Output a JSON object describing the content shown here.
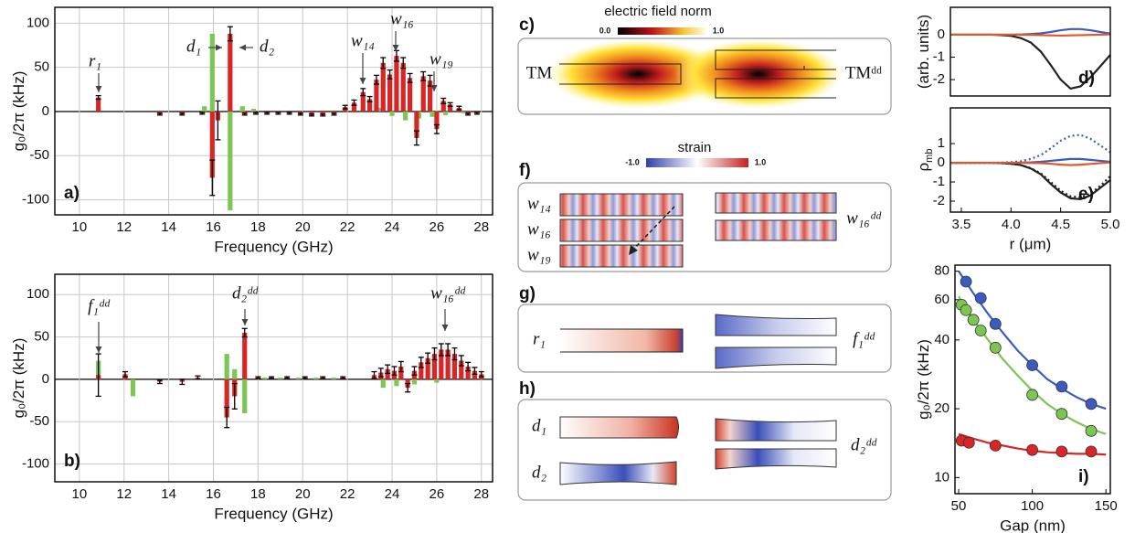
{
  "chart_data": [
    {
      "type": "bar",
      "label": "a)",
      "xlabel": "Frequency (GHz)",
      "ylabel": "g₀/2π (kHz)",
      "xlim": [
        8.9,
        28.5
      ],
      "xticks": [
        10,
        12,
        14,
        16,
        18,
        20,
        22,
        24,
        26,
        28
      ],
      "ylim": [
        -117,
        118
      ],
      "yticks": [
        100,
        50,
        0,
        -50,
        -100
      ],
      "grid": true,
      "annotations": [
        "r₁",
        "d₁",
        "d₂",
        "w₁₄",
        "w₁₆",
        "w₁₉"
      ],
      "series": [
        {
          "color": "#7cc653",
          "x": [
            15.6,
            15.95,
            16.75,
            17.3,
            17.8,
            23.5,
            24.0,
            24.6,
            25.2,
            25.8,
            26.4,
            27.2
          ],
          "values": [
            6,
            88,
            -112,
            6,
            3,
            4,
            -5,
            -10,
            -8,
            -6,
            -4,
            -2
          ]
        },
        {
          "color": "#d82626",
          "x": [
            10.85,
            13.6,
            14.6,
            15.5,
            15.95,
            16.2,
            16.75,
            17.4,
            17.9,
            18.4,
            18.9,
            19.4,
            19.9,
            20.4,
            20.9,
            21.4,
            21.9,
            22.3,
            22.7,
            23.0,
            23.3,
            23.6,
            23.9,
            24.2,
            24.5,
            24.8,
            25.1,
            25.4,
            25.7,
            26.0,
            26.3,
            26.6,
            27.0,
            27.4,
            27.8
          ],
          "values": [
            16,
            -3,
            -3,
            -2,
            -75,
            -10,
            88,
            -3,
            -2,
            -2,
            -2,
            -2,
            -3,
            -4,
            -4,
            -3,
            5,
            10,
            22,
            14,
            36,
            55,
            42,
            63,
            55,
            38,
            -30,
            40,
            35,
            -20,
            12,
            8,
            4,
            -3,
            -2
          ],
          "errors": [
            2,
            1,
            1,
            1,
            20,
            22,
            8,
            1,
            1,
            1,
            1,
            1,
            1,
            1,
            1,
            1,
            2,
            3,
            4,
            3,
            5,
            6,
            5,
            6,
            6,
            5,
            8,
            5,
            6,
            5,
            3,
            2,
            2,
            1,
            1
          ]
        }
      ]
    },
    {
      "type": "bar",
      "label": "b)",
      "xlabel": "Frequency (GHz)",
      "ylabel": "g₀/2π (kHz)",
      "xlim": [
        8.9,
        28.5
      ],
      "xticks": [
        10,
        12,
        14,
        16,
        18,
        20,
        22,
        24,
        26,
        28
      ],
      "ylim": [
        -121,
        124
      ],
      "yticks": [
        100,
        50,
        0,
        -50,
        -100
      ],
      "grid": true,
      "annotations": [
        "f₁ᵈᵈ",
        "d₂ᵈᵈ",
        "w₁₆ᵈᵈ"
      ],
      "series": [
        {
          "color": "#7cc653",
          "x": [
            10.85,
            12.4,
            16.6,
            16.95,
            17.4,
            18.3,
            19.0,
            19.8,
            20.6,
            21.4,
            23.6,
            24.2,
            25.0,
            26.0
          ],
          "values": [
            22,
            -20,
            30,
            12,
            -40,
            2,
            2,
            2,
            2,
            2,
            -10,
            -8,
            -6,
            -4
          ]
        },
        {
          "color": "#d82626",
          "x": [
            10.85,
            12.05,
            13.6,
            14.6,
            15.3,
            16.6,
            16.95,
            17.4,
            18.0,
            18.6,
            19.3,
            20.1,
            20.9,
            21.8,
            23.2,
            23.5,
            23.8,
            24.1,
            24.4,
            24.7,
            25.0,
            25.3,
            25.6,
            25.9,
            26.2,
            26.5,
            26.8,
            27.1,
            27.4,
            27.7,
            28.0
          ],
          "values": [
            5,
            6,
            -3,
            -3,
            2,
            -45,
            -20,
            55,
            2,
            2,
            2,
            2,
            2,
            2,
            5,
            8,
            12,
            10,
            15,
            -10,
            10,
            20,
            25,
            30,
            35,
            35,
            30,
            22,
            15,
            10,
            6
          ],
          "errors": [
            25,
            3,
            2,
            3,
            2,
            12,
            15,
            5,
            1,
            1,
            1,
            1,
            1,
            1,
            4,
            5,
            5,
            5,
            6,
            5,
            5,
            6,
            6,
            7,
            7,
            7,
            7,
            6,
            5,
            4,
            3
          ]
        }
      ]
    },
    {
      "type": "line",
      "label": "d)",
      "ylabel": "(arb. units)",
      "xlim": [
        3.39,
        5.0
      ],
      "ylim": [
        -2.73,
        1.22
      ],
      "yticks": [
        0,
        -1,
        -2
      ],
      "x": [
        3.4,
        3.5,
        3.6,
        3.7,
        3.8,
        3.9,
        4.0,
        4.1,
        4.2,
        4.3,
        4.4,
        4.5,
        4.6,
        4.7,
        4.8,
        4.9,
        5.0
      ],
      "series": [
        {
          "color": "#222222",
          "values": [
            0,
            0,
            0,
            0,
            0,
            -0.02,
            -0.05,
            -0.15,
            -0.35,
            -0.75,
            -1.35,
            -2.0,
            -2.4,
            -2.3,
            -1.9,
            -1.4,
            -0.9
          ]
        },
        {
          "color": "#3b5bbf",
          "values": [
            0,
            0,
            0,
            0,
            0,
            0,
            0,
            0.01,
            0.03,
            0.06,
            0.12,
            0.2,
            0.25,
            0.25,
            0.2,
            0.12,
            0.05
          ]
        },
        {
          "color": "#e0572a",
          "values": [
            0,
            0,
            0,
            0,
            0,
            0,
            0,
            0,
            -0.01,
            -0.02,
            -0.03,
            -0.04,
            -0.03,
            -0.02,
            -0.01,
            0,
            0.02
          ]
        }
      ]
    },
    {
      "type": "line",
      "label": "e)",
      "xlabel": "r (μm)",
      "ylabel": "ρ",
      "ylabel_sub": "mb",
      "xlim": [
        3.39,
        5.0
      ],
      "xticks": [
        3.5,
        {
          "value": 4,
          "label": "4.0"
        },
        4.5,
        {
          "value": 5,
          "label": "5.0"
        }
      ],
      "ylim": [
        -2.57,
        2.86
      ],
      "yticks": [
        1,
        0,
        -1,
        -2
      ],
      "x": [
        3.4,
        3.5,
        3.6,
        3.7,
        3.8,
        3.9,
        4.0,
        4.1,
        4.2,
        4.3,
        4.4,
        4.5,
        4.6,
        4.7,
        4.8,
        4.9,
        5.0
      ],
      "series": [
        {
          "color": "#3b5bbf",
          "dash": true,
          "values": [
            0,
            0,
            0,
            0,
            0,
            0.01,
            0.03,
            0.08,
            0.2,
            0.4,
            0.75,
            1.15,
            1.4,
            1.45,
            1.25,
            0.9,
            0.55
          ]
        },
        {
          "color": "#222222",
          "dash": true,
          "values": [
            0,
            0,
            0,
            0,
            0,
            -0.02,
            -0.05,
            -0.12,
            -0.28,
            -0.55,
            -1.0,
            -1.45,
            -1.75,
            -1.8,
            -1.6,
            -1.2,
            -0.7
          ]
        },
        {
          "color": "#222222",
          "values": [
            0,
            0,
            0,
            0,
            0,
            -0.02,
            -0.05,
            -0.12,
            -0.3,
            -0.6,
            -1.1,
            -1.55,
            -1.85,
            -1.9,
            -1.7,
            -1.3,
            -0.9
          ]
        },
        {
          "color": "#3b5bbf",
          "values": [
            0,
            0,
            0,
            0,
            0,
            0,
            0,
            0.01,
            0.02,
            0.05,
            0.1,
            0.15,
            0.2,
            0.2,
            0.15,
            0.1,
            0.05
          ]
        },
        {
          "color": "#e0572a",
          "values": [
            0,
            0,
            0,
            0,
            0,
            0,
            0,
            0,
            -0.01,
            -0.02,
            -0.05,
            -0.1,
            -0.12,
            -0.1,
            -0.06,
            -0.02,
            0.02
          ]
        }
      ]
    },
    {
      "type": "scatter",
      "label": "i)",
      "xlabel": "Gap (nm)",
      "ylabel": "g₀/2π (kHz)",
      "log_y": true,
      "xlim": [
        47.5,
        153
      ],
      "xticks": [
        50,
        100,
        150
      ],
      "ylim": [
        8.5,
        85
      ],
      "yticks": [
        10,
        20,
        40,
        60,
        80
      ],
      "series": [
        {
          "color": "#3b5bbf",
          "x": [
            50,
            60,
            70,
            80,
            90,
            100,
            110,
            120,
            130,
            140,
            150
          ],
          "values": [
            80,
            64,
            52,
            43,
            36,
            31,
            27,
            24.5,
            22.5,
            21,
            20
          ]
        },
        {
          "color": "#7cc653",
          "x": [
            50,
            60,
            70,
            80,
            90,
            100,
            110,
            120,
            130,
            140,
            150
          ],
          "values": [
            62,
            49,
            40,
            33,
            28,
            24,
            21,
            19,
            17.5,
            16.3,
            15.5
          ]
        },
        {
          "color": "#d82626",
          "x": [
            50,
            60,
            70,
            80,
            90,
            100,
            110,
            120,
            130,
            140,
            150
          ],
          "values": [
            15.5,
            14.8,
            14.2,
            13.8,
            13.4,
            13.1,
            12.9,
            12.8,
            12.7,
            12.7,
            12.6
          ]
        },
        {
          "color": "#3b5bbf",
          "markers": true,
          "x": [
            55,
            65,
            75,
            100,
            120,
            140
          ],
          "values": [
            72,
            61,
            47,
            31,
            25,
            21
          ]
        },
        {
          "color": "#7cc653",
          "markers": true,
          "x": [
            52,
            55,
            60,
            65,
            75,
            100,
            120,
            140
          ],
          "values": [
            57,
            54,
            49,
            44,
            37,
            23,
            19,
            16
          ]
        },
        {
          "color": "#d82626",
          "markers": true,
          "x": [
            52,
            57,
            75,
            100,
            120,
            140
          ],
          "values": [
            14.5,
            14.2,
            13.8,
            13.2,
            13,
            13
          ]
        }
      ]
    }
  ],
  "panels": {
    "c": {
      "label": "c)",
      "title": "electric field norm",
      "scale_min": "0.0",
      "scale_max": "1.0",
      "left": "TM",
      "right": "TMᵈᵈ"
    },
    "f": {
      "label": "f)",
      "title": "strain",
      "scale_min": "-1.0",
      "scale_max": "1.0",
      "modes": [
        "w₁₄",
        "w₁₆",
        "w₁₉"
      ],
      "right": "w₁₆ᵈᵈ"
    },
    "g": {
      "label": "g)",
      "left": "r₁",
      "right": "f₁ᵈᵈ"
    },
    "h": {
      "label": "h)",
      "left": [
        "d₁",
        "d₂"
      ],
      "right": "d₂ᵈᵈ"
    }
  }
}
